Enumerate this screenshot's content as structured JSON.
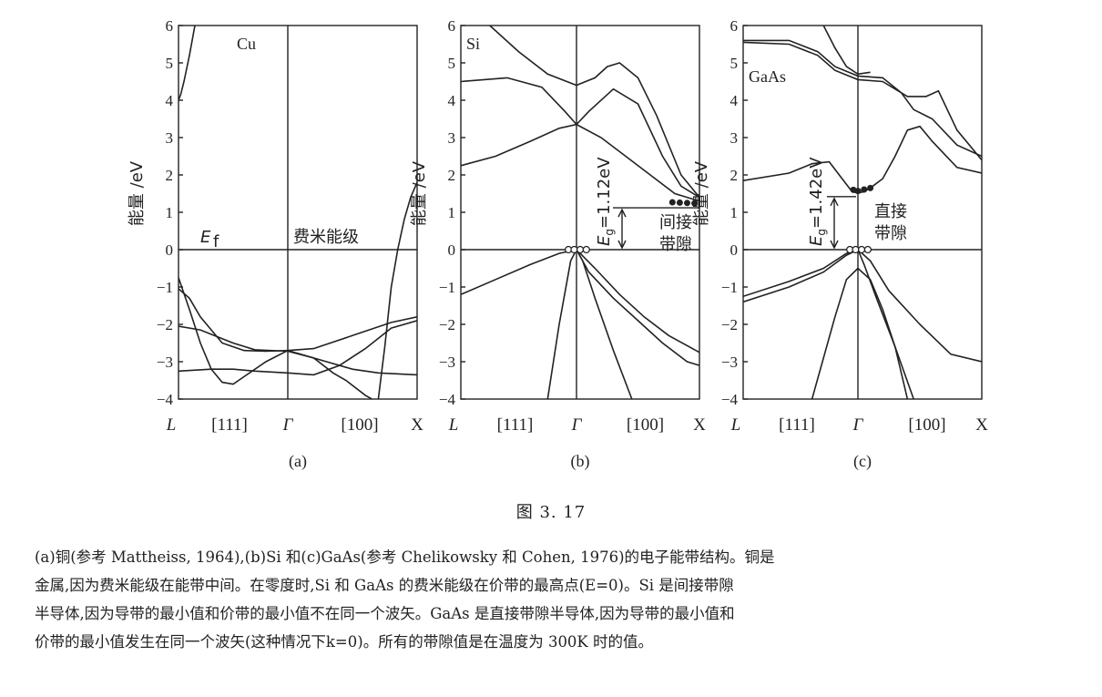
{
  "figure_number": "图   3. 17",
  "caption_lines": [
    "(a)铜(参考 Mattheiss, 1964),(b)Si 和(c)GaAs(参考 Chelikowsky 和 Cohen, 1976)的电子能带结构。铜是",
    "金属,因为费米能级在能带中间。在零度时,Si 和 GaAs 的费米能级在价带的最高点(E=0)。Si 是间接带隙",
    "半导体,因为导带的最小值和价带的最小值不在同一个波矢。GaAs 是直接带隙半导体,因为导带的最小值和",
    "价带的最小值发生在同一个波矢(这种情况下k=0)。所有的带隙值是在温度为 300K 时的值。"
  ],
  "chart_data": [
    {
      "type": "line",
      "panel_label": "(a)",
      "material": "Cu",
      "ylabel": "能量 /eV",
      "ylim": [
        -4,
        6
      ],
      "yticks": [
        "6",
        "5",
        "4",
        "3",
        "2",
        "1",
        "0",
        "−1",
        "−2",
        "−3",
        "−4"
      ],
      "xticks": [
        "L",
        "[111]",
        "Γ",
        "[100]",
        "X"
      ],
      "annotations": {
        "fermi_symbol": "E",
        "fermi_subscript": "f",
        "fermi_text": "费米能级"
      },
      "x_range": [
        -1,
        1
      ],
      "series": [
        {
          "points": [
            [
              -1,
              4.0
            ],
            [
              -0.98,
              4.15
            ],
            [
              -0.95,
              4.5
            ],
            [
              -0.9,
              5.2
            ],
            [
              -0.85,
              6.0
            ]
          ]
        },
        {
          "points": [
            [
              0.7,
              -4.0
            ],
            [
              0.75,
              -2.6
            ],
            [
              0.8,
              -1.0
            ],
            [
              0.85,
              0.0
            ],
            [
              0.9,
              0.8
            ],
            [
              0.95,
              1.4
            ],
            [
              1,
              1.8
            ]
          ]
        },
        {
          "points": [
            [
              -1,
              -0.75
            ],
            [
              -0.9,
              -1.6
            ],
            [
              -0.8,
              -2.5
            ],
            [
              -0.7,
              -3.2
            ],
            [
              -0.6,
              -3.55
            ],
            [
              -0.5,
              -3.6
            ],
            [
              -0.4,
              -3.4
            ],
            [
              -0.2,
              -3.0
            ],
            [
              0,
              -2.7
            ],
            [
              0.2,
              -2.65
            ],
            [
              0.5,
              -2.3
            ],
            [
              0.8,
              -1.95
            ],
            [
              1,
              -1.8
            ]
          ]
        },
        {
          "points": [
            [
              -1,
              -1.05
            ],
            [
              -0.9,
              -1.3
            ],
            [
              -0.8,
              -1.8
            ],
            [
              -0.6,
              -2.5
            ],
            [
              -0.4,
              -2.7
            ],
            [
              -0.2,
              -2.72
            ],
            [
              0,
              -2.7
            ],
            [
              0.3,
              -3.0
            ],
            [
              0.5,
              -3.2
            ],
            [
              0.7,
              -3.3
            ],
            [
              1,
              -3.35
            ]
          ]
        },
        {
          "points": [
            [
              -1,
              -2.05
            ],
            [
              -0.8,
              -2.15
            ],
            [
              -0.5,
              -2.5
            ],
            [
              -0.3,
              -2.68
            ],
            [
              0,
              -2.72
            ],
            [
              0.2,
              -2.9
            ],
            [
              0.35,
              -3.3
            ],
            [
              0.45,
              -3.5
            ],
            [
              0.6,
              -3.9
            ],
            [
              0.65,
              -4.0
            ]
          ]
        },
        {
          "points": [
            [
              -1,
              -3.25
            ],
            [
              -0.7,
              -3.2
            ],
            [
              -0.5,
              -3.2
            ],
            [
              -0.3,
              -3.25
            ],
            [
              0,
              -3.3
            ],
            [
              0.2,
              -3.35
            ],
            [
              0.4,
              -3.1
            ],
            [
              0.6,
              -2.65
            ],
            [
              0.8,
              -2.1
            ],
            [
              1,
              -1.9
            ]
          ]
        }
      ]
    },
    {
      "type": "line",
      "panel_label": "(b)",
      "material": "Si",
      "ylabel": "能量 /eV",
      "ylim": [
        -4,
        6
      ],
      "yticks": [
        "6",
        "5",
        "4",
        "3",
        "2",
        "1",
        "0",
        "−1",
        "−2",
        "−3",
        "−4"
      ],
      "xticks": [
        "L",
        "[111]",
        "Γ",
        "[100]",
        "X"
      ],
      "annotations": {
        "gap_label": "E",
        "gap_subscript": "g",
        "gap_value": "=1.12eV",
        "gap_type_line1": "间接",
        "gap_type_line2": "带隙"
      },
      "band_gap_eV": 1.12,
      "x_range": [
        -1,
        1
      ],
      "series": [
        {
          "points": [
            [
              -1,
              2.25
            ],
            [
              -0.7,
              2.5
            ],
            [
              -0.4,
              2.9
            ],
            [
              -0.15,
              3.25
            ],
            [
              0,
              3.35
            ],
            [
              0.2,
              3.0
            ],
            [
              0.4,
              2.5
            ],
            [
              0.6,
              2.0
            ],
            [
              0.8,
              1.5
            ],
            [
              1,
              1.3
            ]
          ]
        },
        {
          "points": [
            [
              -1,
              4.5
            ],
            [
              -0.6,
              4.6
            ],
            [
              -0.3,
              4.35
            ],
            [
              -0.1,
              3.7
            ],
            [
              0,
              3.35
            ],
            [
              0.1,
              3.7
            ],
            [
              0.3,
              4.3
            ],
            [
              0.5,
              3.9
            ],
            [
              0.7,
              2.5
            ],
            [
              0.85,
              1.7
            ],
            [
              1,
              1.4
            ]
          ]
        },
        {
          "points": [
            [
              -0.75,
              6.0
            ],
            [
              -0.5,
              5.3
            ],
            [
              -0.25,
              4.7
            ],
            [
              0,
              4.4
            ],
            [
              0.15,
              4.6
            ],
            [
              0.25,
              4.9
            ],
            [
              0.35,
              5.0
            ],
            [
              0.5,
              4.6
            ],
            [
              0.65,
              3.6
            ],
            [
              0.85,
              2.0
            ],
            [
              1,
              1.4
            ]
          ]
        },
        {
          "points": [
            [
              -0.25,
              -4.0
            ],
            [
              -0.15,
              -2.0
            ],
            [
              -0.05,
              -0.3
            ],
            [
              0,
              0.0
            ],
            [
              0.15,
              -0.5
            ],
            [
              0.35,
              -1.2
            ],
            [
              0.55,
              -1.8
            ],
            [
              0.75,
              -2.3
            ],
            [
              1,
              -2.75
            ]
          ]
        },
        {
          "points": [
            [
              -1,
              -1.2
            ],
            [
              -0.7,
              -0.8
            ],
            [
              -0.4,
              -0.4
            ],
            [
              -0.15,
              -0.1
            ],
            [
              0,
              0.0
            ],
            [
              0.05,
              -0.3
            ],
            [
              0.15,
              -1.3
            ],
            [
              0.3,
              -2.7
            ],
            [
              0.45,
              -4.0
            ]
          ]
        },
        {
          "points": [
            [
              0,
              0.0
            ],
            [
              0.1,
              -0.6
            ],
            [
              0.3,
              -1.3
            ],
            [
              0.5,
              -1.9
            ],
            [
              0.7,
              -2.5
            ],
            [
              0.9,
              -3.0
            ],
            [
              1,
              -3.1
            ]
          ]
        }
      ]
    },
    {
      "type": "line",
      "panel_label": "(c)",
      "material": "GaAs",
      "ylabel": "能量 /eV",
      "ylim": [
        -4,
        6
      ],
      "yticks": [
        "6",
        "5",
        "4",
        "3",
        "2",
        "1",
        "0",
        "−1",
        "−2",
        "−3",
        "−4"
      ],
      "xticks": [
        "L",
        "[111]",
        "Γ",
        "[100]",
        "X"
      ],
      "annotations": {
        "gap_label": "E",
        "gap_subscript": "g",
        "gap_value": "=1.42eV",
        "gap_type_line1": "直接",
        "gap_type_line2": "带隙"
      },
      "band_gap_eV": 1.42,
      "x_range": [
        -1,
        1
      ],
      "series": [
        {
          "points": [
            [
              -1,
              1.85
            ],
            [
              -0.6,
              2.05
            ],
            [
              -0.4,
              2.3
            ],
            [
              -0.25,
              2.35
            ],
            [
              -0.15,
              1.95
            ],
            [
              -0.05,
              1.55
            ],
            [
              0,
              1.52
            ],
            [
              0.05,
              1.55
            ],
            [
              0.12,
              1.7
            ],
            [
              0.2,
              1.9
            ],
            [
              0.3,
              2.5
            ],
            [
              0.4,
              3.2
            ],
            [
              0.5,
              3.3
            ],
            [
              0.6,
              2.9
            ],
            [
              0.8,
              2.2
            ],
            [
              1,
              2.05
            ]
          ]
        },
        {
          "points": [
            [
              -1,
              5.55
            ],
            [
              -0.6,
              5.5
            ],
            [
              -0.35,
              5.2
            ],
            [
              -0.2,
              4.8
            ],
            [
              0,
              4.55
            ],
            [
              0.2,
              4.5
            ],
            [
              0.4,
              4.1
            ],
            [
              0.55,
              4.1
            ],
            [
              0.65,
              4.25
            ],
            [
              0.8,
              3.2
            ],
            [
              1,
              2.4
            ]
          ]
        },
        {
          "points": [
            [
              -1,
              5.6
            ],
            [
              -0.6,
              5.6
            ],
            [
              -0.35,
              5.3
            ],
            [
              -0.2,
              4.9
            ],
            [
              0,
              4.65
            ],
            [
              0.2,
              4.6
            ],
            [
              0.35,
              4.2
            ],
            [
              0.45,
              3.75
            ],
            [
              0.6,
              3.5
            ],
            [
              0.8,
              2.8
            ],
            [
              1,
              2.5
            ]
          ]
        },
        {
          "points": [
            [
              -0.3,
              6.0
            ],
            [
              -0.2,
              5.4
            ],
            [
              -0.1,
              4.9
            ],
            [
              0,
              4.7
            ],
            [
              0.1,
              4.75
            ]
          ]
        },
        {
          "points": [
            [
              -1,
              -1.4
            ],
            [
              -0.6,
              -1.0
            ],
            [
              -0.3,
              -0.6
            ],
            [
              -0.1,
              -0.15
            ],
            [
              0,
              0.0
            ],
            [
              0.1,
              -0.3
            ],
            [
              0.25,
              -1.1
            ],
            [
              0.5,
              -2.0
            ],
            [
              0.75,
              -2.8
            ],
            [
              1,
              -3.0
            ]
          ]
        },
        {
          "points": [
            [
              -1,
              -1.25
            ],
            [
              -0.6,
              -0.85
            ],
            [
              -0.3,
              -0.5
            ],
            [
              -0.1,
              -0.1
            ],
            [
              0,
              0.0
            ],
            [
              0.05,
              -0.4
            ],
            [
              0.15,
              -1.3
            ],
            [
              0.3,
              -2.6
            ],
            [
              0.45,
              -4.0
            ]
          ]
        },
        {
          "points": [
            [
              -0.4,
              -4.0
            ],
            [
              -0.2,
              -1.8
            ],
            [
              -0.1,
              -0.8
            ],
            [
              0,
              -0.5
            ],
            [
              0.1,
              -0.8
            ],
            [
              0.2,
              -1.6
            ],
            [
              0.3,
              -2.6
            ],
            [
              0.4,
              -4.0
            ]
          ]
        }
      ]
    }
  ]
}
